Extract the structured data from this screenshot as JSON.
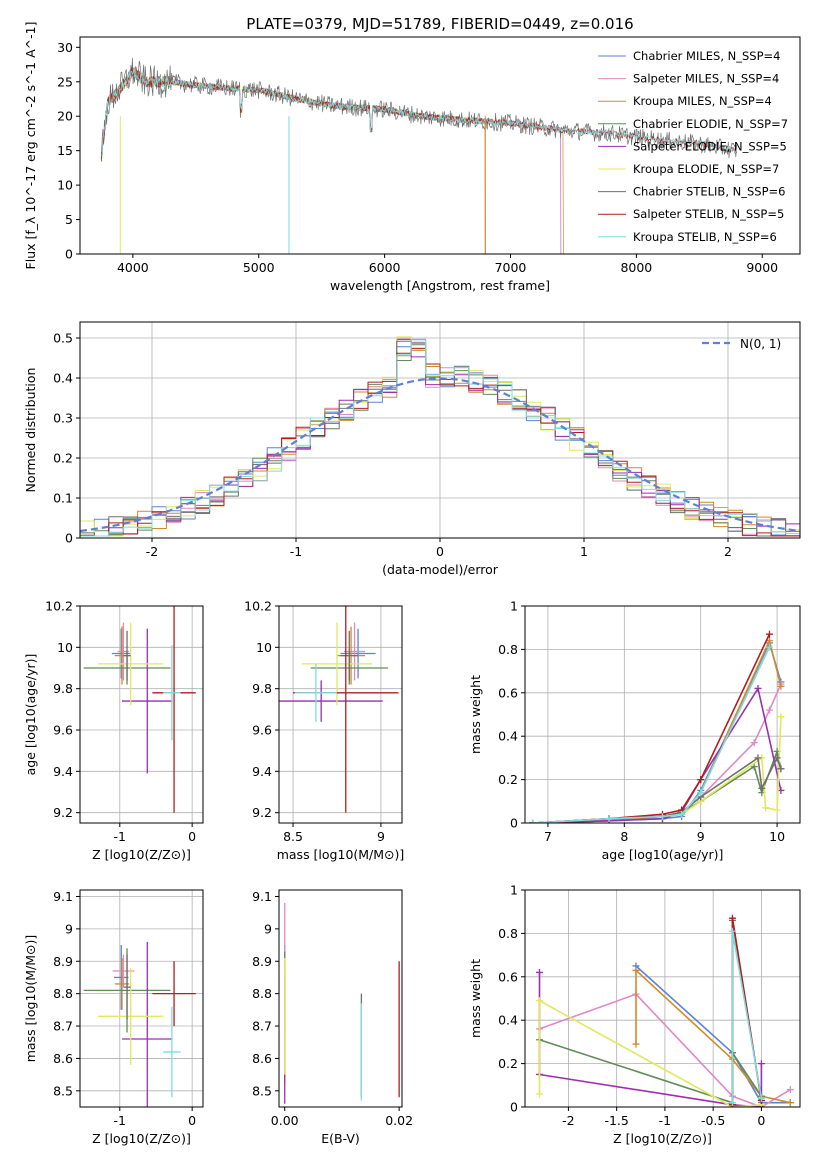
{
  "figure_title": "PLATE=0379, MJD=51789, FIBERID=0449, z=0.016",
  "chart_data": [
    {
      "id": "spectrum",
      "type": "line",
      "xlabel": "wavelength [Angstrom, rest frame]",
      "ylabel": "Flux [f_λ 10^-17 erg cm^-2 s^-1 A^-1]",
      "xlim": [
        3580,
        9300
      ],
      "ylim": [
        0,
        31.5
      ],
      "xticks": [
        4000,
        5000,
        6000,
        7000,
        8000,
        9000
      ],
      "yticks": [
        0,
        5,
        10,
        15,
        20,
        25,
        30
      ],
      "grid": false,
      "legend_position": "top-right",
      "continuum": {
        "x": [
          3750,
          3800,
          3900,
          4000,
          4100,
          4300,
          4500,
          4800,
          5000,
          5300,
          5600,
          6000,
          6300,
          6600,
          7000,
          7400,
          7800,
          8200,
          8500,
          8800,
          9000
        ],
        "y": [
          14,
          22,
          24,
          26.5,
          25,
          25,
          24.5,
          24,
          23.8,
          22.5,
          21.5,
          21,
          20,
          19.5,
          19,
          18,
          17.5,
          16.5,
          16,
          15,
          14
        ]
      },
      "series": [
        {
          "name": "Chabrier MILES, N_SSP=4",
          "color": "#5b82d6",
          "end": 7400
        },
        {
          "name": "Salpeter MILES, N_SSP=4",
          "color": "#e387c4",
          "end": 7400
        },
        {
          "name": "Kroupa MILES, N_SSP=4",
          "color": "#d08a2a",
          "end": 7420
        },
        {
          "name": "Chabrier ELODIE, N_SSP=7",
          "color": "#5f8c58",
          "end": 6800
        },
        {
          "name": "Salpeter ELODIE, N_SSP=5",
          "color": "#9a2fb0",
          "end": 6800
        },
        {
          "name": "Kroupa ELODIE, N_SSP=7",
          "color": "#e0e85c",
          "end": 6800
        },
        {
          "name": "Chabrier STELIB, N_SSP=6",
          "color": "#6f6f6f",
          "end": 8800
        },
        {
          "name": "Salpeter STELIB, N_SSP=5",
          "color": "#b01e1e",
          "end": 8800
        },
        {
          "name": "Kroupa STELIB, N_SSP=6",
          "color": "#7fdcdc",
          "end": 8800
        }
      ]
    },
    {
      "id": "residuals",
      "type": "histogram",
      "xlabel": "(data-model)/error",
      "ylabel": "Normed distribution",
      "xlim": [
        -2.5,
        2.5
      ],
      "ylim": [
        0,
        0.54
      ],
      "xticks": [
        -2,
        -1,
        0,
        1,
        2
      ],
      "yticks": [
        0.0,
        0.1,
        0.2,
        0.3,
        0.4,
        0.5
      ],
      "grid": true,
      "legend": "N(0, 1)",
      "legend_position": "top-right",
      "bin_width": 0.1,
      "colors": [
        "#5b82d6",
        "#e387c4",
        "#d08a2a",
        "#5f8c58",
        "#9a2fb0",
        "#e0e85c",
        "#6f6f6f",
        "#b01e1e",
        "#7fdcdc"
      ]
    },
    {
      "id": "age-vs-z",
      "type": "errorbar",
      "xlabel": "Z [log10(Z/Z⊙)]",
      "ylabel": "age [log10(age/yr)]",
      "xlim": [
        -1.55,
        0.15
      ],
      "ylim": [
        9.15,
        10.2
      ],
      "xticks": [
        -1,
        0
      ],
      "yticks": [
        9.2,
        9.4,
        9.6,
        9.8,
        10.0,
        10.2
      ],
      "grid": true,
      "points": [
        {
          "x": -0.98,
          "y": 9.97,
          "xerr": 0.13,
          "yerr": 0.12,
          "color": "#5b82d6"
        },
        {
          "x": -0.95,
          "y": 9.98,
          "xerr": 0.08,
          "yerr": 0.14,
          "color": "#e387c4"
        },
        {
          "x": -0.97,
          "y": 9.96,
          "xerr": 0.1,
          "yerr": 0.14,
          "color": "#d08a2a"
        },
        {
          "x": -0.9,
          "y": 9.9,
          "xerr": 0.6,
          "yerr": 0.08,
          "color": "#5f8c58"
        },
        {
          "x": -0.62,
          "y": 9.74,
          "xerr": 0.35,
          "yerr": 0.35,
          "color": "#9a2fb0"
        },
        {
          "x": -0.85,
          "y": 9.92,
          "xerr": 0.45,
          "yerr": 0.2,
          "color": "#e0e85c"
        },
        {
          "x": -0.9,
          "y": 9.96,
          "xerr": 0.05,
          "yerr": 0.12,
          "color": "#6f6f6f"
        },
        {
          "x": -0.25,
          "y": 9.78,
          "xerr": 0.3,
          "yerr": 0.58,
          "color": "#b01e1e"
        },
        {
          "x": -0.28,
          "y": 9.78,
          "xerr": 0.12,
          "yerr": 0.23,
          "color": "#7fdcdc"
        }
      ]
    },
    {
      "id": "age-vs-mass",
      "type": "errorbar",
      "xlabel": "mass [log10(M/M⊙)]",
      "ylabel": "",
      "xlim": [
        8.42,
        9.12
      ],
      "ylim": [
        9.15,
        10.2
      ],
      "xticks": [
        8.5,
        9.0
      ],
      "yticks": [
        9.2,
        9.4,
        9.6,
        9.8,
        10.0,
        10.2
      ],
      "grid": true,
      "points": [
        {
          "x": 8.87,
          "y": 9.97,
          "xerr": 0.1,
          "yerr": 0.12,
          "color": "#5b82d6"
        },
        {
          "x": 8.85,
          "y": 9.98,
          "xerr": 0.06,
          "yerr": 0.14,
          "color": "#e387c4"
        },
        {
          "x": 8.83,
          "y": 9.96,
          "xerr": 0.08,
          "yerr": 0.14,
          "color": "#d08a2a"
        },
        {
          "x": 8.82,
          "y": 9.9,
          "xerr": 0.22,
          "yerr": 0.08,
          "color": "#5f8c58"
        },
        {
          "x": 8.66,
          "y": 9.74,
          "xerr": 0.35,
          "yerr": 0.1,
          "color": "#9a2fb0"
        },
        {
          "x": 8.75,
          "y": 9.92,
          "xerr": 0.2,
          "yerr": 0.2,
          "color": "#e0e85c"
        },
        {
          "x": 8.82,
          "y": 9.96,
          "xerr": 0.05,
          "yerr": 0.12,
          "color": "#6f6f6f"
        },
        {
          "x": 8.8,
          "y": 9.78,
          "xerr": 0.3,
          "yerr": 0.58,
          "color": "#b01e1e"
        },
        {
          "x": 8.63,
          "y": 9.78,
          "xerr": 0.12,
          "yerr": 0.14,
          "color": "#7fdcdc"
        }
      ]
    },
    {
      "id": "weight-vs-age",
      "type": "line",
      "xlabel": "age [log10(age/yr)]",
      "ylabel": "mass weight",
      "xlim": [
        6.7,
        10.3
      ],
      "ylim": [
        0,
        1.0
      ],
      "xticks": [
        7,
        8,
        9,
        10
      ],
      "yticks": [
        0.0,
        0.2,
        0.4,
        0.6,
        0.8,
        1.0
      ],
      "grid": true,
      "series": [
        {
          "color": "#5b82d6",
          "x": [
            6.8,
            7.8,
            8.5,
            8.75,
            9.0,
            9.9,
            10.05
          ],
          "y": [
            0.0,
            0.01,
            0.02,
            0.03,
            0.15,
            0.83,
            0.65
          ]
        },
        {
          "color": "#e387c4",
          "x": [
            6.8,
            7.8,
            8.5,
            8.75,
            9.0,
            9.7,
            9.9,
            10.05
          ],
          "y": [
            0.0,
            0.01,
            0.03,
            0.05,
            0.12,
            0.37,
            0.52,
            0.64
          ]
        },
        {
          "color": "#d08a2a",
          "x": [
            6.8,
            7.8,
            8.5,
            8.75,
            9.0,
            9.9,
            10.05
          ],
          "y": [
            0.0,
            0.01,
            0.03,
            0.04,
            0.14,
            0.84,
            0.63
          ]
        },
        {
          "color": "#5f8c58",
          "x": [
            6.8,
            7.8,
            8.5,
            8.75,
            9.0,
            9.7,
            9.8,
            10.0,
            10.05
          ],
          "y": [
            0.0,
            0.02,
            0.03,
            0.05,
            0.1,
            0.26,
            0.14,
            0.33,
            0.25
          ]
        },
        {
          "color": "#9a2fb0",
          "x": [
            6.8,
            7.8,
            8.5,
            8.75,
            9.0,
            9.75,
            10.05
          ],
          "y": [
            0.0,
            0.01,
            0.02,
            0.05,
            0.2,
            0.62,
            0.15
          ]
        },
        {
          "color": "#e0e85c",
          "x": [
            6.8,
            7.8,
            8.5,
            8.75,
            9.0,
            9.8,
            9.85,
            10.0,
            10.05
          ],
          "y": [
            0.0,
            0.02,
            0.03,
            0.04,
            0.1,
            0.3,
            0.07,
            0.06,
            0.49
          ]
        },
        {
          "color": "#6f6f6f",
          "x": [
            6.8,
            7.8,
            8.5,
            8.75,
            9.0,
            9.75,
            9.8,
            10.0,
            10.05
          ],
          "y": [
            0.0,
            0.02,
            0.03,
            0.05,
            0.12,
            0.3,
            0.16,
            0.3,
            0.25
          ]
        },
        {
          "color": "#b01e1e",
          "x": [
            6.8,
            7.8,
            8.5,
            8.75,
            9.0,
            9.9
          ],
          "y": [
            0.0,
            0.02,
            0.04,
            0.06,
            0.2,
            0.87
          ]
        },
        {
          "color": "#7fdcdc",
          "x": [
            6.8,
            7.8,
            8.5,
            8.75,
            9.0,
            9.9
          ],
          "y": [
            0.0,
            0.02,
            0.03,
            0.04,
            0.14,
            0.81
          ]
        }
      ]
    },
    {
      "id": "mass-vs-z",
      "type": "errorbar",
      "xlabel": "Z [log10(Z/Z⊙)]",
      "ylabel": "mass [log10(M/M⊙)]",
      "xlim": [
        -1.55,
        0.15
      ],
      "ylim": [
        8.45,
        9.12
      ],
      "xticks": [
        -1,
        0
      ],
      "yticks": [
        8.5,
        8.6,
        8.7,
        8.8,
        8.9,
        9.0,
        9.1
      ],
      "grid": true,
      "points": [
        {
          "x": -0.98,
          "y": 8.85,
          "xerr": 0.1,
          "yerr": 0.1,
          "color": "#5b82d6"
        },
        {
          "x": -0.95,
          "y": 8.87,
          "xerr": 0.15,
          "yerr": 0.05,
          "color": "#e387c4"
        },
        {
          "x": -0.97,
          "y": 8.83,
          "xerr": 0.1,
          "yerr": 0.08,
          "color": "#d08a2a"
        },
        {
          "x": -0.9,
          "y": 8.81,
          "xerr": 0.6,
          "yerr": 0.13,
          "color": "#5f8c58"
        },
        {
          "x": -0.62,
          "y": 8.66,
          "xerr": 0.35,
          "yerr": 0.3,
          "color": "#9a2fb0"
        },
        {
          "x": -0.85,
          "y": 8.73,
          "xerr": 0.45,
          "yerr": 0.15,
          "color": "#e0e85c"
        },
        {
          "x": -0.9,
          "y": 8.82,
          "xerr": 0.05,
          "yerr": 0.1,
          "color": "#6f6f6f"
        },
        {
          "x": -0.25,
          "y": 8.8,
          "xerr": 0.3,
          "yerr": 0.1,
          "color": "#b01e1e"
        },
        {
          "x": -0.28,
          "y": 8.62,
          "xerr": 0.12,
          "yerr": 0.14,
          "color": "#7fdcdc"
        }
      ]
    },
    {
      "id": "mass-vs-ebv",
      "type": "errorbar",
      "xlabel": "E(B-V)",
      "ylabel": "",
      "xlim": [
        -0.001,
        0.0205
      ],
      "ylim": [
        8.45,
        9.12
      ],
      "xticks": [
        0.0,
        0.02
      ],
      "xtick_labels": [
        "0.00",
        "0.02"
      ],
      "yticks": [
        8.5,
        8.6,
        8.7,
        8.8,
        8.9,
        9.0,
        9.1
      ],
      "grid": false,
      "points": [
        {
          "x": 0.0,
          "y": 8.85,
          "xerr": 0,
          "yerr": 0.1,
          "color": "#5b82d6"
        },
        {
          "x": 0.0,
          "y": 8.9,
          "xerr": 0,
          "yerr": 0.18,
          "color": "#e387c4"
        },
        {
          "x": 0.0,
          "y": 8.7,
          "xerr": 0,
          "yerr": 0.18,
          "color": "#d08a2a"
        },
        {
          "x": 0.0,
          "y": 8.81,
          "xerr": 0,
          "yerr": 0.12,
          "color": "#5f8c58"
        },
        {
          "x": 0.0,
          "y": 8.66,
          "xerr": 0,
          "yerr": 0.2,
          "color": "#9a2fb0"
        },
        {
          "x": 0.0,
          "y": 8.73,
          "xerr": 0,
          "yerr": 0.18,
          "color": "#e0e85c"
        },
        {
          "x": 0.0134,
          "y": 8.64,
          "xerr": 0,
          "yerr": 0.16,
          "color": "#6f6f6f"
        },
        {
          "x": 0.02,
          "y": 8.69,
          "xerr": 0,
          "yerr": 0.21,
          "color": "#b01e1e"
        },
        {
          "x": 0.0134,
          "y": 8.62,
          "xerr": 0,
          "yerr": 0.15,
          "color": "#7fdcdc"
        }
      ]
    },
    {
      "id": "weight-vs-z",
      "type": "line",
      "xlabel": "Z [log10(Z/Z⊙)]",
      "ylabel": "mass weight",
      "xlim": [
        -2.45,
        0.4
      ],
      "ylim": [
        0,
        1.0
      ],
      "xticks": [
        -2.0,
        -1.5,
        -1.0,
        -0.5,
        0.0
      ],
      "yticks": [
        0.0,
        0.2,
        0.4,
        0.6,
        0.8,
        1.0
      ],
      "grid": true,
      "series": [
        {
          "color": "#5b82d6",
          "x": [
            -1.3,
            -0.3,
            0.0,
            0.3
          ],
          "y": [
            0.65,
            0.25,
            0.02,
            0.02
          ]
        },
        {
          "color": "#e387c4",
          "x": [
            -2.3,
            -1.3,
            -0.3,
            0.0,
            0.3
          ],
          "y": [
            0.36,
            0.52,
            0.05,
            0.0,
            0.08
          ]
        },
        {
          "color": "#d08a2a",
          "x": [
            -1.3,
            -1.3,
            -0.3,
            0.0,
            0.3
          ],
          "y": [
            0.29,
            0.63,
            0.22,
            0.05,
            0.02
          ]
        },
        {
          "color": "#5f8c58",
          "x": [
            -2.3,
            -0.3,
            -0.3,
            0.0,
            0.0
          ],
          "y": [
            0.31,
            0.02,
            0.25,
            0.05,
            0.0
          ]
        },
        {
          "color": "#9a2fb0",
          "x": [
            -2.3,
            -2.3,
            -0.3,
            0.0,
            0.0
          ],
          "y": [
            0.62,
            0.15,
            0.01,
            0.0,
            0.2
          ]
        },
        {
          "color": "#e0e85c",
          "x": [
            -2.3,
            -2.3,
            -0.3,
            0.0
          ],
          "y": [
            0.06,
            0.49,
            0.0,
            0.01
          ]
        },
        {
          "color": "#6f6f6f",
          "x": [
            -0.3,
            -0.3,
            0.0
          ],
          "y": [
            0.0,
            0.86,
            0.03
          ]
        },
        {
          "color": "#b01e1e",
          "x": [
            -0.3,
            -0.3,
            0.0
          ],
          "y": [
            0.01,
            0.87,
            0.03
          ]
        },
        {
          "color": "#7fdcdc",
          "x": [
            -0.3,
            -0.3,
            0.0
          ],
          "y": [
            0.02,
            0.81,
            0.04
          ]
        }
      ]
    }
  ]
}
